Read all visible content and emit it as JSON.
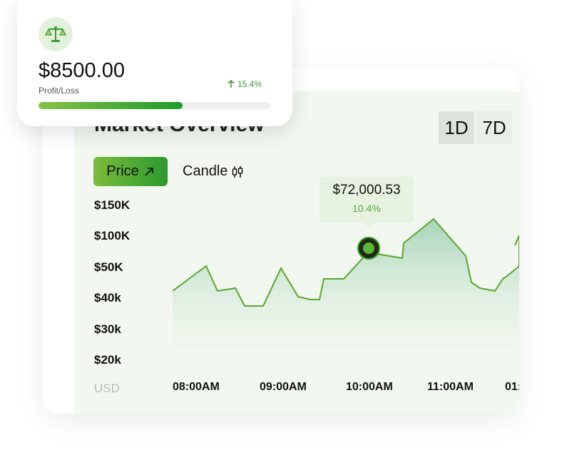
{
  "profit_card": {
    "icon": "scale-icon",
    "amount": "$8500.00",
    "label": "Profit/Loss",
    "change": "15.4%",
    "change_direction": "up",
    "progress_fraction": 0.62
  },
  "market": {
    "title": "Market Overview",
    "ranges": [
      "1D",
      "7D"
    ],
    "active_range": "1D",
    "toggle_price": "Price",
    "toggle_candle": "Candle",
    "tooltip": {
      "value": "$72,000.53",
      "change": "10.4%"
    }
  },
  "chart_data": {
    "type": "area",
    "y_tick_labels": [
      "$150K",
      "$100K",
      "$50K",
      "$40k",
      "$30k",
      "$20k"
    ],
    "y_unit": "USD",
    "x_tick_labels": [
      "08:00AM",
      "09:00AM",
      "10:00AM",
      "11:00AM",
      "01:"
    ],
    "highlight_point": {
      "x": "10:00AM",
      "y": "$72,000.53"
    },
    "colors": {
      "line": "#5aa632",
      "fill": "#8cc9a6",
      "accent": "#2b9a2c"
    }
  }
}
